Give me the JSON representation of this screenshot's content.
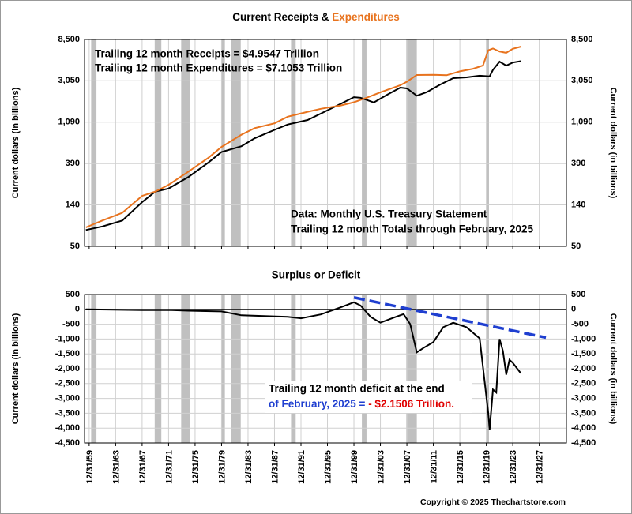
{
  "chart_data": [
    {
      "type": "line",
      "title": "Current Receipts &",
      "title_highlight": "Expenditures",
      "title_highlight_color": "#e8731e",
      "y_label": "Current dollars (in billions)",
      "log_scale": true,
      "grid": true,
      "xlim": [
        1959.3,
        2032.1
      ],
      "ylim": [
        50,
        8500
      ],
      "yticks": [
        50,
        140,
        390,
        {
          "value": 1090,
          "label": "1,090"
        },
        {
          "value": 3050,
          "label": "3,050"
        },
        {
          "value": 8500,
          "label": "8,500"
        }
      ],
      "xticks": [
        1960,
        1964,
        1968,
        1972,
        1976,
        1980,
        1984,
        1988,
        1992,
        1996,
        2000,
        2004,
        2008,
        2012,
        2016,
        2020,
        2024,
        2028
      ],
      "shaded_periods": [
        [
          1960.3,
          1961.1
        ],
        [
          1969.9,
          1970.9
        ],
        [
          1973.9,
          1975.2
        ],
        [
          1980.0,
          1980.5
        ],
        [
          1981.5,
          1982.9
        ],
        [
          1990.5,
          1991.2
        ],
        [
          2001.2,
          2001.9
        ],
        [
          2007.9,
          2009.5
        ],
        [
          2020.1,
          2020.4
        ]
      ],
      "shade_color": "#c0c0c0",
      "series": [
        {
          "name": "Trailing 12 month Receipts = $4.9547 Trillion",
          "color": "#000000",
          "x": [
            1959.5,
            1962,
            1965,
            1968,
            1970,
            1972,
            1975,
            1978,
            1980,
            1983,
            1985,
            1988,
            1990,
            1993,
            1995,
            1998,
            2000,
            2001,
            2003,
            2005,
            2007,
            2008,
            2009.5,
            2011,
            2013,
            2015,
            2017,
            2019,
            2020.5,
            2021,
            2022,
            2023,
            2024,
            2025.2
          ],
          "values": [
            75,
            82,
            95,
            150,
            195,
            210,
            280,
            400,
            520,
            600,
            730,
            900,
            1030,
            1150,
            1350,
            1720,
            2030,
            2000,
            1780,
            2150,
            2570,
            2520,
            2100,
            2300,
            2770,
            3250,
            3320,
            3460,
            3400,
            4000,
            4900,
            4440,
            4800,
            4955
          ]
        },
        {
          "name": "Trailing 12 month Expenditures = $7.1053 Trillion",
          "color": "#e8731e",
          "x": [
            1959.5,
            1962,
            1965,
            1968,
            1970,
            1972,
            1975,
            1978,
            1980,
            1983,
            1985,
            1988,
            1990,
            1993,
            1995,
            1998,
            2000,
            2002,
            2004,
            2007,
            2008,
            2009.5,
            2012,
            2014,
            2016,
            2018,
            2019.5,
            2020.3,
            2021,
            2022,
            2023,
            2024,
            2025.2
          ],
          "values": [
            80,
            95,
            115,
            175,
            195,
            230,
            320,
            450,
            590,
            800,
            940,
            1060,
            1250,
            1410,
            1520,
            1650,
            1790,
            2010,
            2290,
            2730,
            2980,
            3520,
            3540,
            3500,
            3850,
            4110,
            4450,
            6500,
            6800,
            6300,
            6100,
            6750,
            7105
          ]
        }
      ],
      "annotations": [
        "Data:  Monthly U.S. Treasury Statement",
        "Trailing 12 month Totals through February, 2025"
      ]
    },
    {
      "type": "line",
      "title": "Surplus or Deficit",
      "y_label": "Current dollars (in billions)",
      "grid": true,
      "xlim": [
        1959.3,
        2032.1
      ],
      "ylim": [
        -4500,
        500
      ],
      "yticks": [
        {
          "value": -4500,
          "label": "-4,500"
        },
        {
          "value": -4000,
          "label": "-4,000"
        },
        {
          "value": -3500,
          "label": "-3,500"
        },
        {
          "value": -3000,
          "label": "-3,000"
        },
        {
          "value": -2500,
          "label": "-2,500"
        },
        {
          "value": -2000,
          "label": "-2,000"
        },
        {
          "value": -1500,
          "label": "-1,500"
        },
        {
          "value": -1000,
          "label": "-1,000"
        },
        -500,
        0,
        500
      ],
      "xticks": [
        {
          "value": 1960,
          "label": "12/31/59"
        },
        {
          "value": 1964,
          "label": "12/31/63"
        },
        {
          "value": 1968,
          "label": "12/31/67"
        },
        {
          "value": 1972,
          "label": "12/31/71"
        },
        {
          "value": 1976,
          "label": "12/31/75"
        },
        {
          "value": 1980,
          "label": "12/31/79"
        },
        {
          "value": 1984,
          "label": "12/31/83"
        },
        {
          "value": 1988,
          "label": "12/31/87"
        },
        {
          "value": 1992,
          "label": "12/31/91"
        },
        {
          "value": 1996,
          "label": "12/31/95"
        },
        {
          "value": 2000,
          "label": "12/31/99"
        },
        {
          "value": 2004,
          "label": "12/31/03"
        },
        {
          "value": 2008,
          "label": "12/31/07"
        },
        {
          "value": 2012,
          "label": "12/31/11"
        },
        {
          "value": 2016,
          "label": "12/31/15"
        },
        {
          "value": 2020,
          "label": "12/31/19"
        },
        {
          "value": 2024,
          "label": "12/31/23"
        },
        {
          "value": 2028,
          "label": "12/31/27"
        }
      ],
      "shaded_periods": [
        [
          1960.3,
          1961.1
        ],
        [
          1969.9,
          1970.9
        ],
        [
          1973.9,
          1975.2
        ],
        [
          1980.0,
          1980.5
        ],
        [
          1981.5,
          1982.9
        ],
        [
          1990.5,
          1991.2
        ],
        [
          2001.2,
          2001.9
        ],
        [
          2007.9,
          2009.5
        ],
        [
          2020.1,
          2020.4
        ]
      ],
      "shade_color": "#c0c0c0",
      "series": [
        {
          "color": "#000000",
          "x": [
            1959.5,
            1968,
            1972,
            1975,
            1980,
            1983,
            1986,
            1990,
            1992,
            1995,
            1998,
            2000,
            2001,
            2002.5,
            2004,
            2006,
            2007.5,
            2008.5,
            2009.5,
            2010.5,
            2012,
            2013.5,
            2015,
            2017,
            2019,
            2020.3,
            2020.5,
            2021,
            2021.5,
            2022,
            2022.5,
            2023,
            2023.5,
            2024,
            2025.2
          ],
          "values": [
            0,
            -25,
            -20,
            -45,
            -70,
            -200,
            -220,
            -250,
            -300,
            -170,
            70,
            240,
            130,
            -250,
            -450,
            -280,
            -160,
            -500,
            -1450,
            -1300,
            -1100,
            -600,
            -450,
            -600,
            -980,
            -3500,
            -4050,
            -2700,
            -2800,
            -1000,
            -1400,
            -2200,
            -1700,
            -1800,
            -2150
          ]
        }
      ],
      "trend_line": {
        "x": [
          2000,
          2029
        ],
        "y": [
          400,
          -950
        ],
        "color": "#1f3fd0"
      },
      "annotation": "Trailing 12 month deficit at the end",
      "annotation_2": "of February, 2025 = ",
      "annotation_highlight": "- $2.1506 Trillion.",
      "annotation_color": "#1f3fd0",
      "annotation_highlight_color": "#e00000"
    }
  ],
  "footer": "Copyright © 2025 Thechartstore.com"
}
